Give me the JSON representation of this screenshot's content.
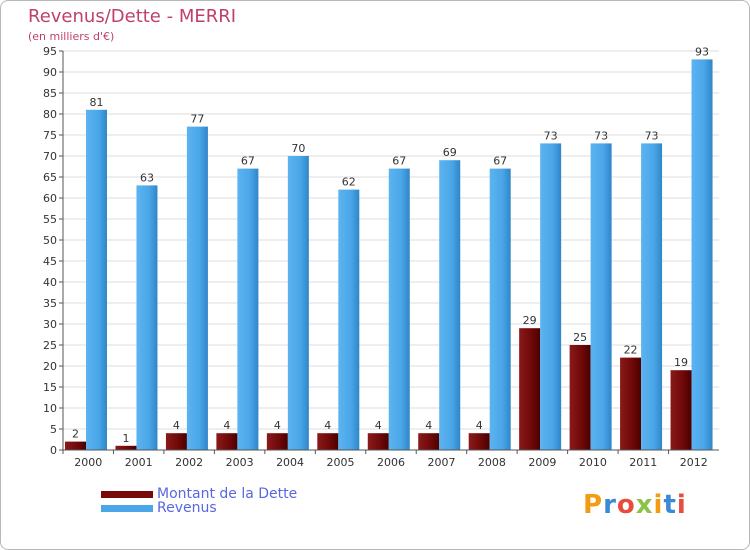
{
  "title": "Revenus/Dette - MERRI",
  "subtitle": "(en milliers d'€)",
  "logo": "Proxiti",
  "chart_data": {
    "type": "bar",
    "title": "Revenus/Dette - MERRI",
    "subtitle": "(en milliers d'€)",
    "categories": [
      "2000",
      "2001",
      "2002",
      "2003",
      "2004",
      "2005",
      "2006",
      "2007",
      "2008",
      "2009",
      "2010",
      "2011",
      "2012"
    ],
    "series": [
      {
        "name": "Montant de la Dette",
        "color": "#7a0a0a",
        "values": [
          2,
          1,
          4,
          4,
          4,
          4,
          4,
          4,
          4,
          29,
          25,
          22,
          19
        ]
      },
      {
        "name": "Revenus",
        "color": "#4aa6e8",
        "values": [
          81,
          63,
          77,
          67,
          70,
          62,
          67,
          69,
          67,
          73,
          73,
          73,
          93
        ]
      }
    ],
    "ylim": [
      0,
      95
    ],
    "ytick_step": 5,
    "grid": true,
    "legend_position": "bottom-left"
  },
  "colors": {
    "title": "#c0406a",
    "debt": "#7a0a0a",
    "revenue": "#4aa6e8",
    "legend_text": "#5a66e0"
  }
}
